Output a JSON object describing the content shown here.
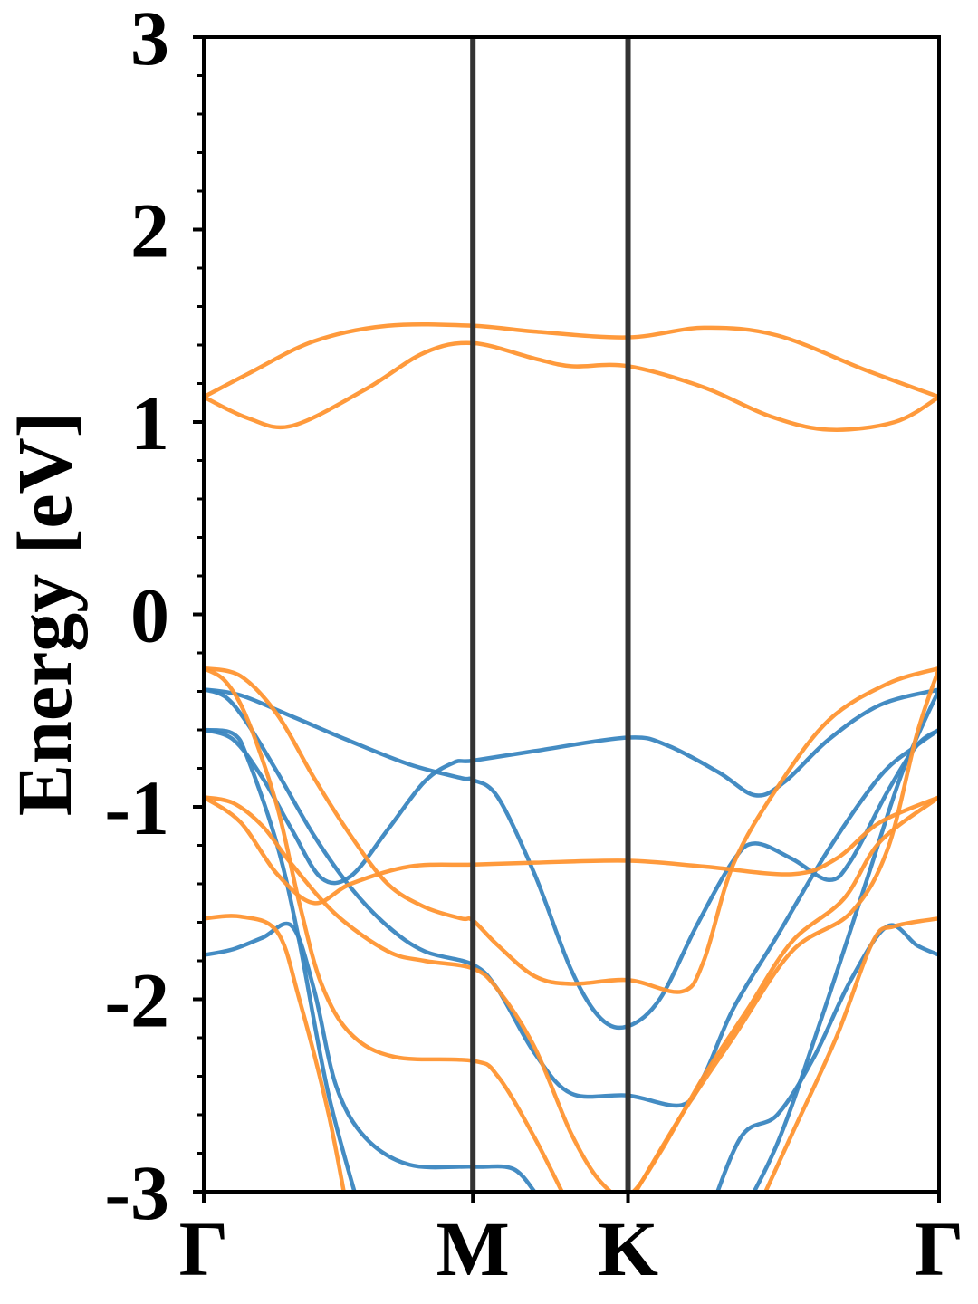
{
  "chart_data": {
    "type": "line",
    "title": "",
    "xlabel": "",
    "ylabel": "Energy [eV]",
    "ylim": [
      -3,
      3
    ],
    "yticks": [
      "3",
      "2",
      "1",
      "0",
      "-1",
      "-2",
      "-3"
    ],
    "xlim": [
      0,
      1
    ],
    "xticks": [
      {
        "label": "Γ",
        "x": 0
      },
      {
        "label": "M",
        "x": 0.366
      },
      {
        "label": "K",
        "x": 0.577
      },
      {
        "label": "Γ",
        "x": 1
      }
    ],
    "grid": false,
    "colors": {
      "blue": "#3a86c0",
      "orange": "#ff9532",
      "divider": "#333333"
    },
    "series": [
      {
        "color": "#ff9532",
        "points": [
          [
            0,
            1.13
          ],
          [
            0.06,
            1.25
          ],
          [
            0.15,
            1.42
          ],
          [
            0.25,
            1.5
          ],
          [
            0.366,
            1.5
          ],
          [
            0.45,
            1.47
          ],
          [
            0.577,
            1.44
          ],
          [
            0.68,
            1.49
          ],
          [
            0.78,
            1.45
          ],
          [
            0.9,
            1.27
          ],
          [
            1,
            1.13
          ]
        ]
      },
      {
        "color": "#ff9532",
        "points": [
          [
            0,
            1.13
          ],
          [
            0.06,
            1.02
          ],
          [
            0.12,
            0.98
          ],
          [
            0.22,
            1.17
          ],
          [
            0.3,
            1.36
          ],
          [
            0.366,
            1.41
          ],
          [
            0.45,
            1.33
          ],
          [
            0.5,
            1.29
          ],
          [
            0.577,
            1.29
          ],
          [
            0.68,
            1.18
          ],
          [
            0.77,
            1.03
          ],
          [
            0.85,
            0.96
          ],
          [
            0.94,
            1.0
          ],
          [
            1,
            1.13
          ]
        ]
      },
      {
        "color": "#3a86c0",
        "points": [
          [
            0,
            -0.39
          ],
          [
            0.05,
            -0.42
          ],
          [
            0.12,
            -0.53
          ],
          [
            0.2,
            -0.66
          ],
          [
            0.28,
            -0.78
          ],
          [
            0.35,
            -0.85
          ],
          [
            0.366,
            -0.86
          ],
          [
            0.4,
            -0.95
          ],
          [
            0.45,
            -1.35
          ],
          [
            0.5,
            -1.85
          ],
          [
            0.54,
            -2.1
          ],
          [
            0.577,
            -2.14
          ],
          [
            0.62,
            -2.0
          ],
          [
            0.67,
            -1.62
          ],
          [
            0.72,
            -1.28
          ],
          [
            0.75,
            -1.19
          ],
          [
            0.8,
            -1.27
          ],
          [
            0.85,
            -1.38
          ],
          [
            0.88,
            -1.28
          ],
          [
            0.93,
            -0.92
          ],
          [
            0.97,
            -0.68
          ],
          [
            1,
            -0.6
          ]
        ]
      },
      {
        "color": "#3a86c0",
        "points": [
          [
            0,
            -0.6
          ],
          [
            0.04,
            -0.65
          ],
          [
            0.08,
            -0.85
          ],
          [
            0.12,
            -1.12
          ],
          [
            0.16,
            -1.37
          ],
          [
            0.2,
            -1.36
          ],
          [
            0.25,
            -1.12
          ],
          [
            0.3,
            -0.87
          ],
          [
            0.34,
            -0.77
          ],
          [
            0.366,
            -0.76
          ],
          [
            0.45,
            -0.71
          ],
          [
            0.577,
            -0.64
          ],
          [
            0.63,
            -0.68
          ],
          [
            0.7,
            -0.82
          ],
          [
            0.75,
            -0.94
          ],
          [
            0.79,
            -0.87
          ],
          [
            0.85,
            -0.65
          ],
          [
            0.92,
            -0.47
          ],
          [
            1,
            -0.39
          ]
        ]
      },
      {
        "color": "#3a86c0",
        "points": [
          [
            0,
            -0.39
          ],
          [
            0.03,
            -0.43
          ],
          [
            0.06,
            -0.57
          ],
          [
            0.1,
            -0.82
          ],
          [
            0.15,
            -1.15
          ],
          [
            0.2,
            -1.42
          ],
          [
            0.25,
            -1.62
          ],
          [
            0.3,
            -1.75
          ],
          [
            0.366,
            -1.82
          ],
          [
            0.4,
            -1.95
          ],
          [
            0.45,
            -2.28
          ],
          [
            0.5,
            -2.49
          ],
          [
            0.577,
            -2.5
          ],
          [
            0.65,
            -2.55
          ],
          [
            0.68,
            -2.4
          ],
          [
            0.72,
            -2.05
          ],
          [
            0.78,
            -1.67
          ],
          [
            0.85,
            -1.22
          ],
          [
            0.92,
            -0.84
          ],
          [
            0.97,
            -0.68
          ],
          [
            1,
            -0.6
          ]
        ]
      },
      {
        "color": "#3a86c0",
        "points": [
          [
            0,
            -1.77
          ],
          [
            0.04,
            -1.74
          ],
          [
            0.08,
            -1.68
          ],
          [
            0.12,
            -1.62
          ],
          [
            0.15,
            -1.95
          ],
          [
            0.18,
            -2.45
          ],
          [
            0.22,
            -2.72
          ],
          [
            0.28,
            -2.86
          ],
          [
            0.366,
            -2.87
          ],
          [
            0.42,
            -2.88
          ],
          [
            0.45,
            -3.0
          ]
        ]
      },
      {
        "color": "#3a86c0",
        "points": [
          [
            0,
            -0.6
          ],
          [
            0.04,
            -0.62
          ],
          [
            0.06,
            -0.75
          ],
          [
            0.1,
            -1.2
          ],
          [
            0.13,
            -1.7
          ],
          [
            0.17,
            -2.5
          ],
          [
            0.22,
            -3.2
          ]
        ]
      },
      {
        "color": "#3a86c0",
        "points": [
          [
            0.68,
            -3.2
          ],
          [
            0.73,
            -2.72
          ],
          [
            0.78,
            -2.6
          ],
          [
            0.83,
            -2.3
          ],
          [
            0.88,
            -1.9
          ],
          [
            0.93,
            -1.62
          ],
          [
            0.97,
            -1.72
          ],
          [
            1,
            -1.77
          ]
        ]
      },
      {
        "color": "#3a86c0",
        "points": [
          [
            0.72,
            -3.2
          ],
          [
            0.78,
            -2.75
          ],
          [
            0.84,
            -2.1
          ],
          [
            0.9,
            -1.4
          ],
          [
            0.95,
            -0.82
          ],
          [
            1,
            -0.39
          ]
        ]
      },
      {
        "color": "#ff9532",
        "points": [
          [
            0,
            -0.28
          ],
          [
            0.05,
            -0.32
          ],
          [
            0.1,
            -0.52
          ],
          [
            0.15,
            -0.85
          ],
          [
            0.2,
            -1.15
          ],
          [
            0.25,
            -1.4
          ],
          [
            0.3,
            -1.52
          ],
          [
            0.35,
            -1.58
          ],
          [
            0.366,
            -1.59
          ],
          [
            0.4,
            -1.72
          ],
          [
            0.45,
            -1.88
          ],
          [
            0.5,
            -1.92
          ],
          [
            0.577,
            -1.9
          ],
          [
            0.65,
            -1.96
          ],
          [
            0.68,
            -1.8
          ],
          [
            0.72,
            -1.3
          ],
          [
            0.78,
            -0.9
          ],
          [
            0.85,
            -0.55
          ],
          [
            0.93,
            -0.36
          ],
          [
            1,
            -0.28
          ]
        ]
      },
      {
        "color": "#ff9532",
        "points": [
          [
            0,
            -0.95
          ],
          [
            0.05,
            -1.08
          ],
          [
            0.1,
            -1.35
          ],
          [
            0.15,
            -1.5
          ],
          [
            0.2,
            -1.4
          ],
          [
            0.28,
            -1.31
          ],
          [
            0.366,
            -1.3
          ],
          [
            0.45,
            -1.29
          ],
          [
            0.577,
            -1.28
          ],
          [
            0.68,
            -1.31
          ],
          [
            0.8,
            -1.35
          ],
          [
            0.86,
            -1.27
          ],
          [
            0.92,
            -1.08
          ],
          [
            1,
            -0.95
          ]
        ]
      },
      {
        "color": "#ff9532",
        "points": [
          [
            0,
            -0.95
          ],
          [
            0.04,
            -0.98
          ],
          [
            0.08,
            -1.1
          ],
          [
            0.12,
            -1.3
          ],
          [
            0.18,
            -1.56
          ],
          [
            0.25,
            -1.75
          ],
          [
            0.3,
            -1.8
          ],
          [
            0.366,
            -1.84
          ],
          [
            0.4,
            -1.95
          ],
          [
            0.45,
            -2.25
          ],
          [
            0.5,
            -2.7
          ],
          [
            0.54,
            -2.95
          ],
          [
            0.577,
            -3.02
          ],
          [
            0.62,
            -2.8
          ],
          [
            0.68,
            -2.4
          ],
          [
            0.74,
            -2.05
          ],
          [
            0.8,
            -1.7
          ],
          [
            0.87,
            -1.48
          ],
          [
            0.92,
            -1.18
          ],
          [
            1,
            -0.95
          ]
        ]
      },
      {
        "color": "#ff9532",
        "points": [
          [
            0,
            -0.28
          ],
          [
            0.03,
            -0.35
          ],
          [
            0.06,
            -0.55
          ],
          [
            0.1,
            -1.0
          ],
          [
            0.13,
            -1.5
          ],
          [
            0.16,
            -1.92
          ],
          [
            0.2,
            -2.18
          ],
          [
            0.26,
            -2.3
          ],
          [
            0.366,
            -2.32
          ],
          [
            0.4,
            -2.4
          ],
          [
            0.45,
            -2.72
          ],
          [
            0.5,
            -3.1
          ]
        ]
      },
      {
        "color": "#ff9532",
        "points": [
          [
            0,
            -1.58
          ],
          [
            0.05,
            -1.57
          ],
          [
            0.1,
            -1.65
          ],
          [
            0.13,
            -2.0
          ],
          [
            0.17,
            -2.6
          ],
          [
            0.2,
            -3.2
          ]
        ]
      },
      {
        "color": "#ff9532",
        "points": [
          [
            0.58,
            -3.05
          ],
          [
            0.65,
            -2.6
          ],
          [
            0.72,
            -2.2
          ],
          [
            0.8,
            -1.75
          ],
          [
            0.88,
            -1.55
          ],
          [
            0.93,
            -1.22
          ],
          [
            0.97,
            -0.62
          ],
          [
            1,
            -0.28
          ]
        ]
      },
      {
        "color": "#ff9532",
        "points": [
          [
            0.74,
            -3.2
          ],
          [
            0.8,
            -2.7
          ],
          [
            0.86,
            -2.2
          ],
          [
            0.91,
            -1.7
          ],
          [
            0.94,
            -1.62
          ],
          [
            1,
            -1.58
          ]
        ]
      }
    ]
  }
}
